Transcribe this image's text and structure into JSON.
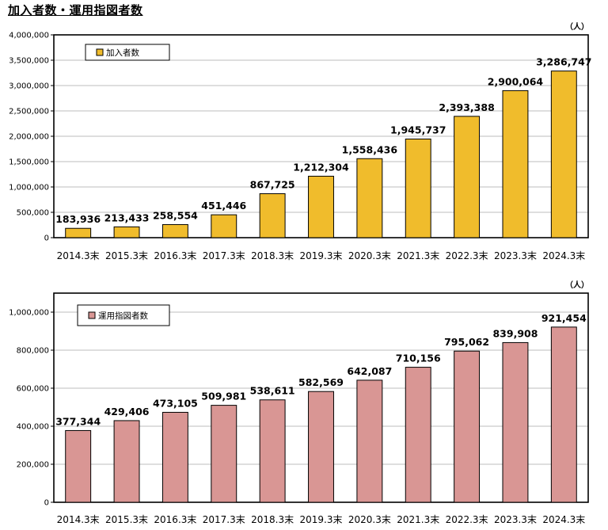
{
  "title": "加入者数・運用指図者数",
  "chart_data": [
    {
      "type": "bar",
      "unit_label": "（人）",
      "categories": [
        "2014.3末",
        "2015.3末",
        "2016.3末",
        "2017.3末",
        "2018.3末",
        "2019.3末",
        "2020.3末",
        "2021.3末",
        "2022.3末",
        "2023.3末",
        "2024.3末"
      ],
      "series": [
        {
          "name": "加入者数",
          "color": "#F0BC2C",
          "values": [
            183936,
            213433,
            258554,
            451446,
            867725,
            1212304,
            1558436,
            1945737,
            2393388,
            2900064,
            3286747
          ],
          "labels": [
            "183,936",
            "213,433",
            "258,554",
            "451,446",
            "867,725",
            "1,212,304",
            "1,558,436",
            "1,945,737",
            "2,393,388",
            "2,900,064",
            "3,286,747"
          ]
        }
      ],
      "ylim": [
        0,
        4000000
      ],
      "yticks": [
        0,
        500000,
        1000000,
        1500000,
        2000000,
        2500000,
        3000000,
        3500000,
        4000000
      ],
      "ytick_labels": [
        "0",
        "500,000",
        "1,000,000",
        "1,500,000",
        "2,000,000",
        "2,500,000",
        "3,000,000",
        "3,500,000",
        "4,000,000"
      ],
      "grid": true,
      "legend_position": "top-left"
    },
    {
      "type": "bar",
      "unit_label": "（人）",
      "categories": [
        "2014.3末",
        "2015.3末",
        "2016.3末",
        "2017.3末",
        "2018.3末",
        "2019.3末",
        "2020.3末",
        "2021.3末",
        "2022.3末",
        "2023.3末",
        "2024.3末"
      ],
      "series": [
        {
          "name": "運用指図者数",
          "color": "#D99694",
          "values": [
            377344,
            429406,
            473105,
            509981,
            538611,
            582569,
            642087,
            710156,
            795062,
            839908,
            921454
          ],
          "labels": [
            "377,344",
            "429,406",
            "473,105",
            "509,981",
            "538,611",
            "582,569",
            "642,087",
            "710,156",
            "795,062",
            "839,908",
            "921,454"
          ]
        }
      ],
      "ylim": [
        0,
        1100000
      ],
      "yticks": [
        0,
        200000,
        400000,
        600000,
        800000,
        1000000
      ],
      "ytick_labels": [
        "0",
        "200,000",
        "400,000",
        "600,000",
        "800,000",
        "1,000,000"
      ],
      "grid": true,
      "legend_position": "top-left"
    }
  ]
}
